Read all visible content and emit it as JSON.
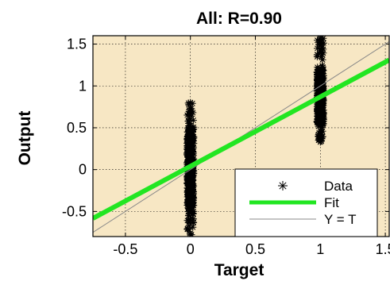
{
  "chart_data": {
    "type": "scatter",
    "title": "All: R=0.90",
    "xlabel": "Target",
    "ylabel": "Output",
    "xlim": [
      -0.75,
      1.53
    ],
    "ylim": [
      -0.8,
      1.6
    ],
    "xticks": [
      -0.5,
      0,
      0.5,
      1,
      1.5
    ],
    "xtick_labels": [
      "-0.5",
      "0",
      "0.5",
      "1",
      "1.5"
    ],
    "yticks": [
      -0.5,
      0,
      0.5,
      1,
      1.5
    ],
    "ytick_labels": [
      "-0.5",
      "0",
      "0.5",
      "1",
      "1.5"
    ],
    "grid": true,
    "background": "#f7e7c4",
    "legend_position": "bottom-right",
    "series": [
      {
        "name": "Data",
        "marker": "asterisk",
        "color": "#000000",
        "clusters": [
          {
            "x": 0,
            "y_min": -0.78,
            "y_max": 0.8,
            "y_dense_min": -0.45,
            "y_dense_max": 0.5,
            "y_median": 0.05
          },
          {
            "x": 1,
            "y_min": 0.33,
            "y_max": 1.57,
            "y_dense_min": 0.55,
            "y_dense_max": 1.2,
            "y_median": 0.88
          }
        ]
      },
      {
        "name": "Fit",
        "type": "line",
        "color": "#22e622",
        "slope": 0.83,
        "intercept": 0.04
      },
      {
        "name": "Y = T",
        "type": "line",
        "color": "#888888",
        "slope": 1,
        "intercept": 0
      }
    ]
  }
}
